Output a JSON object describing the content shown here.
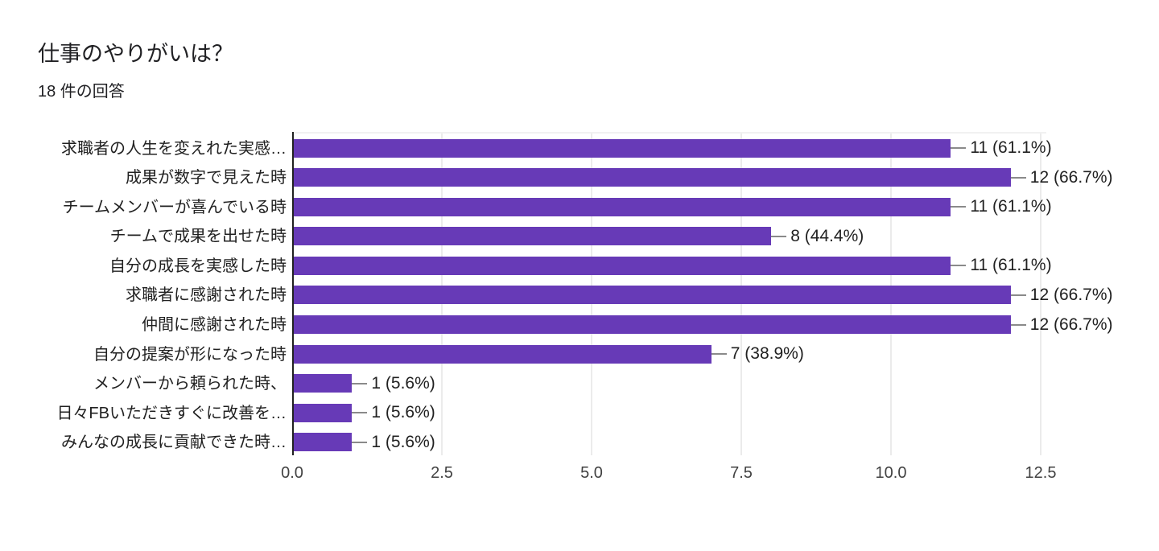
{
  "header": {
    "title": "仕事のやりがいは？",
    "subtitle": "18 件の回答"
  },
  "chart_data": {
    "type": "bar",
    "orientation": "horizontal",
    "title": "仕事のやりがいは？",
    "subtitle": "18 件の回答",
    "categories": [
      "求職者の人生を変えれた実感…",
      "成果が数字で見えた時",
      "チームメンバーが喜んでいる時",
      "チームで成果を出せた時",
      "自分の成長を実感した時",
      "求職者に感謝された時",
      "仲間に感謝された時",
      "自分の提案が形になった時",
      "メンバーから頼られた時、",
      "日々FBいただきすぐに改善を…",
      "みんなの成長に貢献できた時…"
    ],
    "values": [
      11,
      12,
      11,
      8,
      11,
      12,
      12,
      7,
      1,
      1,
      1
    ],
    "value_labels": [
      "11 (61.1%)",
      "12 (66.7%)",
      "11 (61.1%)",
      "8 (44.4%)",
      "11 (61.1%)",
      "12 (66.7%)",
      "12 (66.7%)",
      "7 (38.9%)",
      "1 (5.6%)",
      "1 (5.6%)",
      "1 (5.6%)"
    ],
    "x_ticks": [
      "0.0",
      "2.5",
      "5.0",
      "7.5",
      "10.0",
      "12.5"
    ],
    "xlim": [
      0,
      12.5
    ],
    "xlabel": "",
    "ylabel": "",
    "grid": true,
    "legend": "none",
    "colors": {
      "bar": "#673ab7",
      "axis_line": "#212121",
      "gridline": "#ebebeb",
      "connector": "#8a8a8a",
      "label_text": "#212121",
      "tick_text": "#424242"
    }
  }
}
